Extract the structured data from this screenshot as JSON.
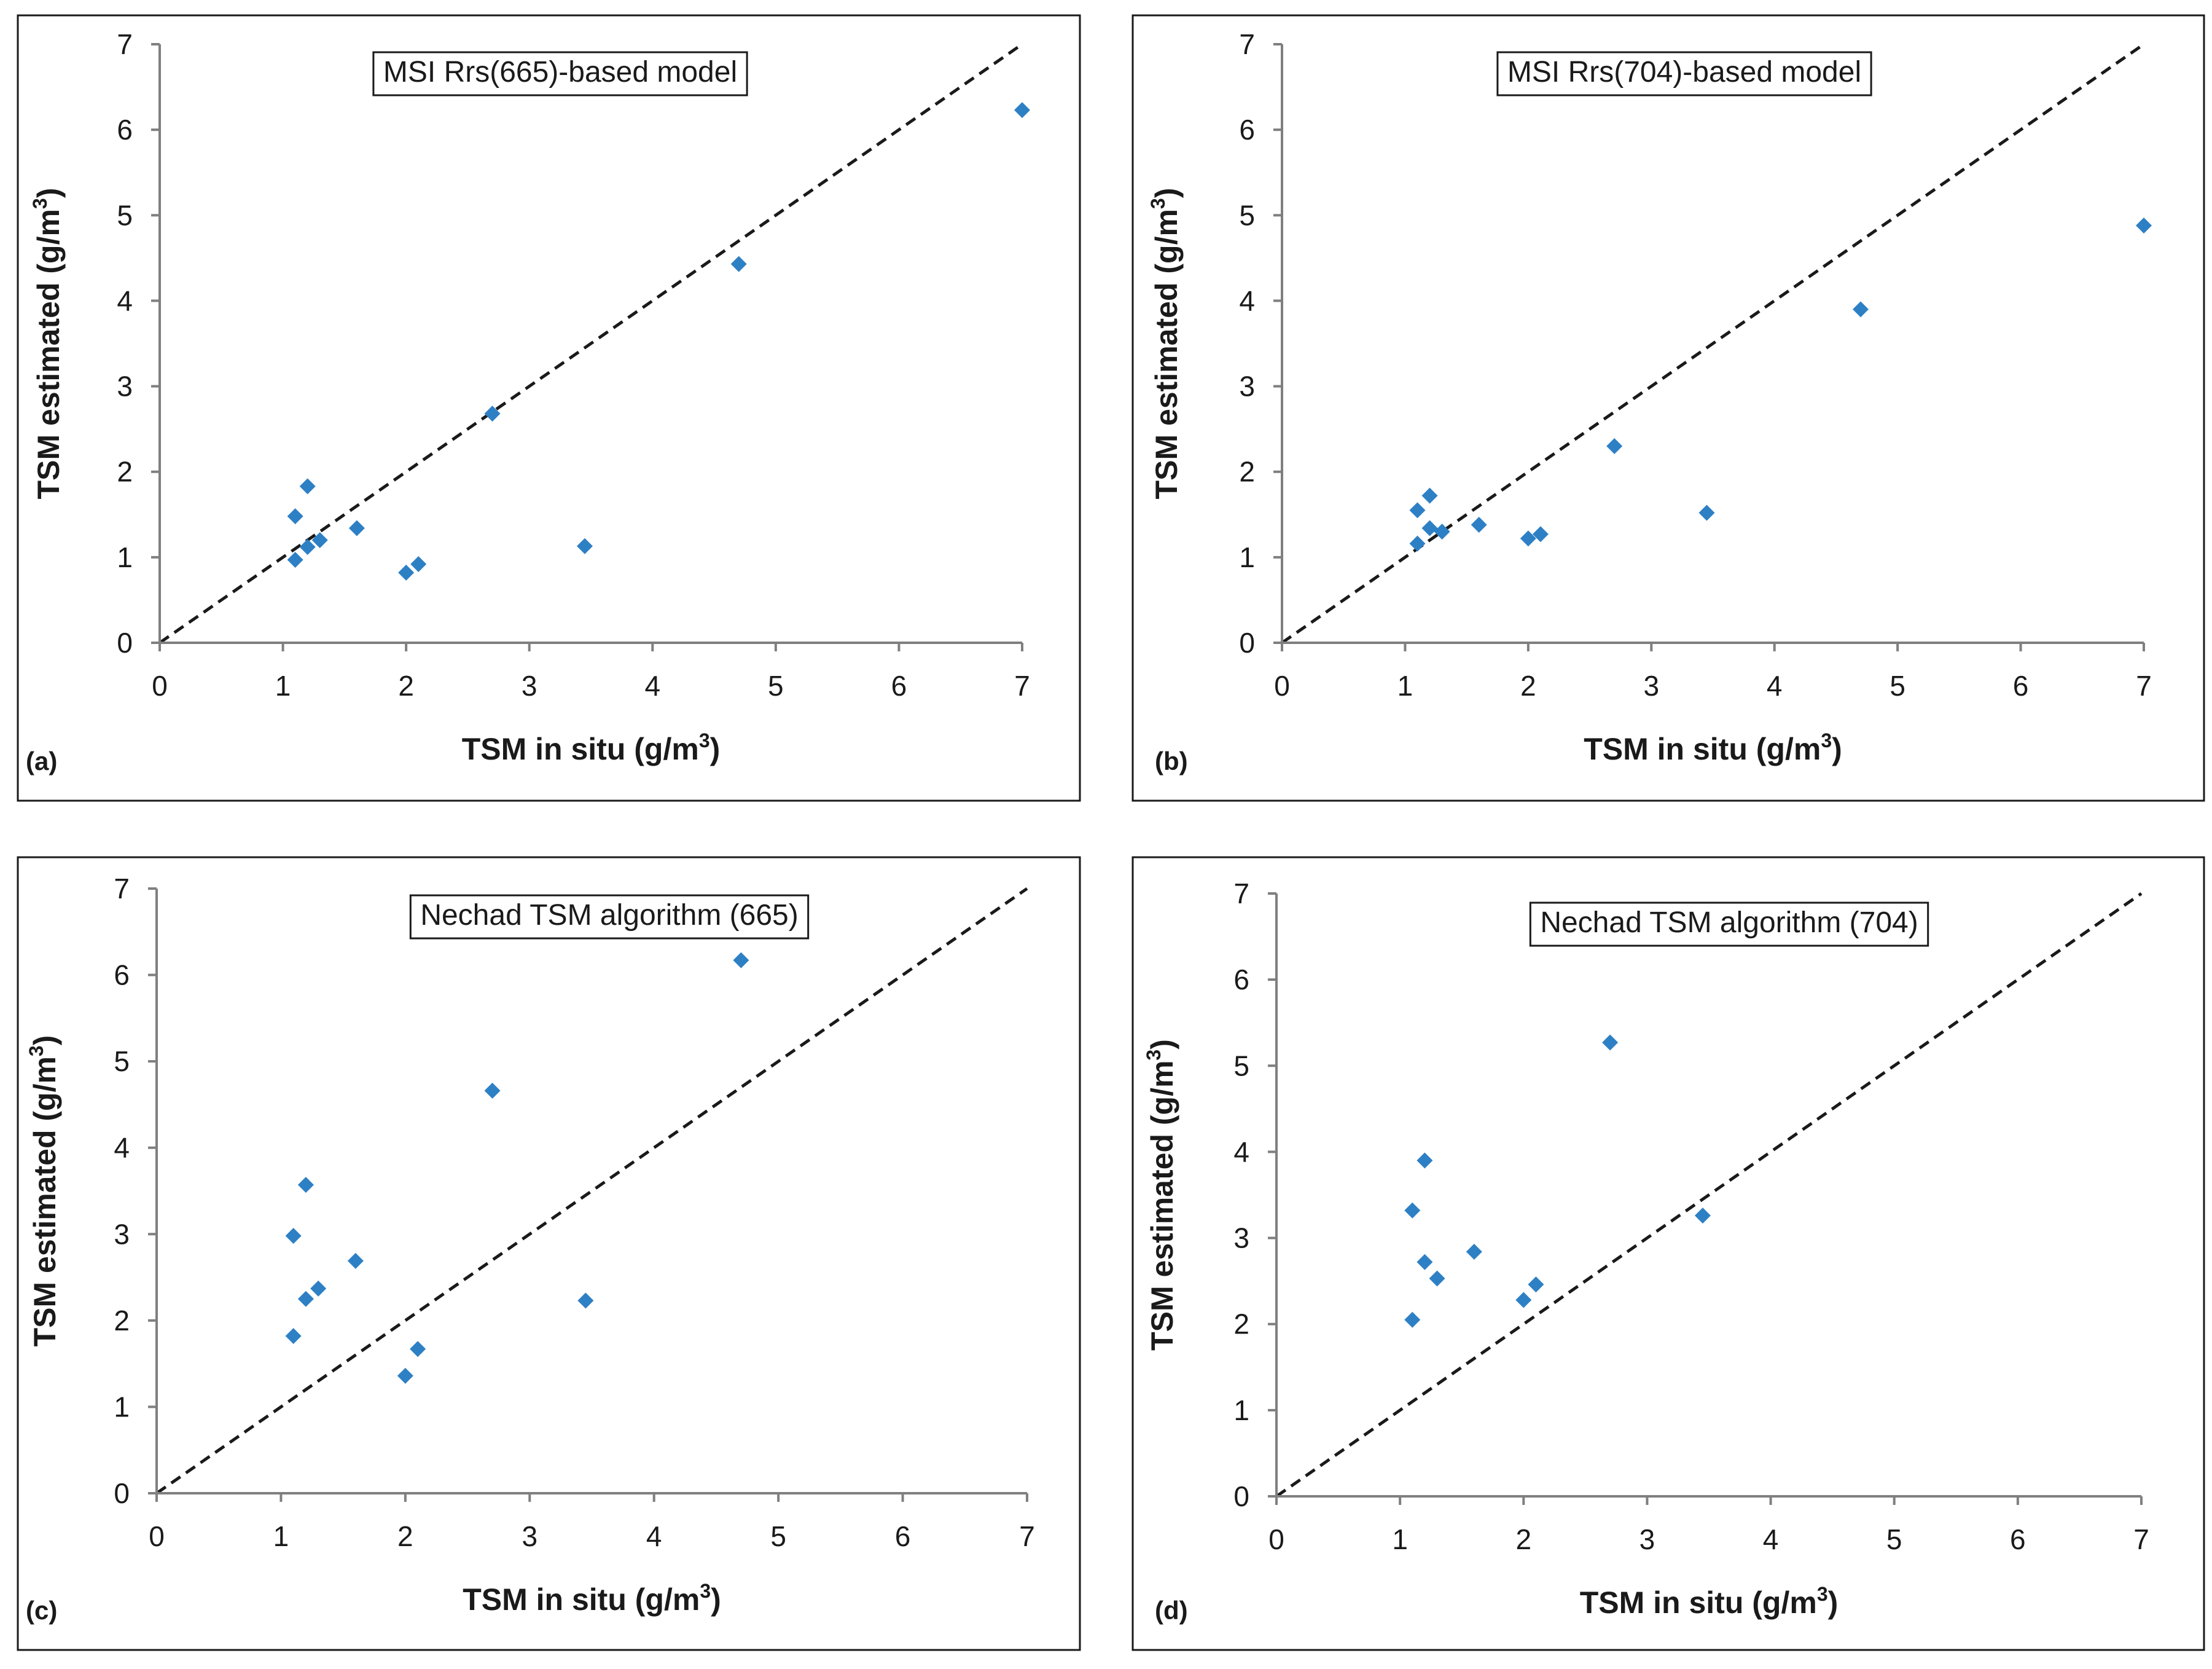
{
  "colors": {
    "marker": "#2e80c5",
    "axis": "#7f7f7f",
    "frame": "#1a1a1a"
  },
  "chart_data": [
    {
      "id": "a",
      "type": "scatter",
      "panel_label": "(a)",
      "title": "MSI Rrs(665)-based model",
      "xlabel": "TSM in situ",
      "xlabel_unit": "(g/m",
      "ylabel": "TSM estimated (g/m",
      "unit_sup": "3",
      "unit_close": ")",
      "xlim": [
        0,
        7
      ],
      "ylim": [
        0,
        7
      ],
      "xticks": [
        "0",
        "1",
        "2",
        "3",
        "4",
        "5",
        "6",
        "7"
      ],
      "yticks": [
        "0",
        "1",
        "2",
        "3",
        "4",
        "5",
        "6",
        "7"
      ],
      "reference_line": "1:1 dashed",
      "points": [
        {
          "x": 1.1,
          "y": 1.48
        },
        {
          "x": 1.1,
          "y": 0.97
        },
        {
          "x": 1.2,
          "y": 1.83
        },
        {
          "x": 1.2,
          "y": 1.12
        },
        {
          "x": 1.3,
          "y": 1.2
        },
        {
          "x": 1.6,
          "y": 1.34
        },
        {
          "x": 2.0,
          "y": 0.82
        },
        {
          "x": 2.1,
          "y": 0.92
        },
        {
          "x": 2.7,
          "y": 2.68
        },
        {
          "x": 3.45,
          "y": 1.13
        },
        {
          "x": 4.7,
          "y": 4.43
        },
        {
          "x": 7.0,
          "y": 6.23
        }
      ]
    },
    {
      "id": "b",
      "type": "scatter",
      "panel_label": "(b)",
      "title": "MSI Rrs(704)-based model",
      "xlabel": "TSM in situ",
      "xlabel_unit": "(g/m",
      "ylabel": "TSM estimated (g/m",
      "unit_sup": "3",
      "unit_close": ")",
      "xlim": [
        0,
        7
      ],
      "ylim": [
        0,
        7
      ],
      "xticks": [
        "0",
        "1",
        "2",
        "3",
        "4",
        "5",
        "6",
        "7"
      ],
      "yticks": [
        "0",
        "1",
        "2",
        "3",
        "4",
        "5",
        "6",
        "7"
      ],
      "reference_line": "1:1 dashed",
      "points": [
        {
          "x": 1.1,
          "y": 1.55
        },
        {
          "x": 1.1,
          "y": 1.16
        },
        {
          "x": 1.2,
          "y": 1.72
        },
        {
          "x": 1.2,
          "y": 1.34
        },
        {
          "x": 1.3,
          "y": 1.3
        },
        {
          "x": 1.6,
          "y": 1.38
        },
        {
          "x": 2.0,
          "y": 1.22
        },
        {
          "x": 2.1,
          "y": 1.27
        },
        {
          "x": 2.7,
          "y": 2.3
        },
        {
          "x": 3.45,
          "y": 1.52
        },
        {
          "x": 4.7,
          "y": 3.9
        },
        {
          "x": 7.0,
          "y": 4.88
        }
      ]
    },
    {
      "id": "c",
      "type": "scatter",
      "panel_label": "(c)",
      "title": "Nechad TSM algorithm (665)",
      "xlabel": "TSM in situ",
      "xlabel_unit": "(g/m",
      "ylabel": "TSM estimated (g/m",
      "unit_sup": "3",
      "unit_close": ")",
      "xlim": [
        0,
        7
      ],
      "ylim": [
        0,
        7
      ],
      "xticks": [
        "0",
        "1",
        "2",
        "3",
        "4",
        "5",
        "6",
        "7"
      ],
      "yticks": [
        "0",
        "1",
        "2",
        "3",
        "4",
        "5",
        "6",
        "7"
      ],
      "reference_line": "1:1 dashed",
      "points": [
        {
          "x": 1.1,
          "y": 2.98
        },
        {
          "x": 1.1,
          "y": 1.82
        },
        {
          "x": 1.2,
          "y": 3.57
        },
        {
          "x": 1.2,
          "y": 2.25
        },
        {
          "x": 1.3,
          "y": 2.37
        },
        {
          "x": 1.6,
          "y": 2.69
        },
        {
          "x": 2.0,
          "y": 1.36
        },
        {
          "x": 2.1,
          "y": 1.67
        },
        {
          "x": 2.7,
          "y": 4.66
        },
        {
          "x": 3.45,
          "y": 2.23
        },
        {
          "x": 4.7,
          "y": 6.17
        }
      ]
    },
    {
      "id": "d",
      "type": "scatter",
      "panel_label": "(d)",
      "title": "Nechad TSM algorithm (704)",
      "xlabel": "TSM in situ",
      "xlabel_unit": "(g/m",
      "ylabel": "TSM estimated (g/m",
      "unit_sup": "3",
      "unit_close": ")",
      "xlim": [
        0,
        7
      ],
      "ylim": [
        0,
        7
      ],
      "xticks": [
        "0",
        "1",
        "2",
        "3",
        "4",
        "5",
        "6",
        "7"
      ],
      "yticks": [
        "0",
        "1",
        "2",
        "3",
        "4",
        "5",
        "6",
        "7"
      ],
      "reference_line": "1:1 dashed",
      "points": [
        {
          "x": 1.1,
          "y": 3.32
        },
        {
          "x": 1.1,
          "y": 2.05
        },
        {
          "x": 1.2,
          "y": 3.9
        },
        {
          "x": 1.2,
          "y": 2.72
        },
        {
          "x": 1.3,
          "y": 2.53
        },
        {
          "x": 1.6,
          "y": 2.84
        },
        {
          "x": 2.0,
          "y": 2.28
        },
        {
          "x": 2.1,
          "y": 2.46
        },
        {
          "x": 2.7,
          "y": 5.27
        },
        {
          "x": 3.45,
          "y": 3.26
        }
      ]
    }
  ]
}
